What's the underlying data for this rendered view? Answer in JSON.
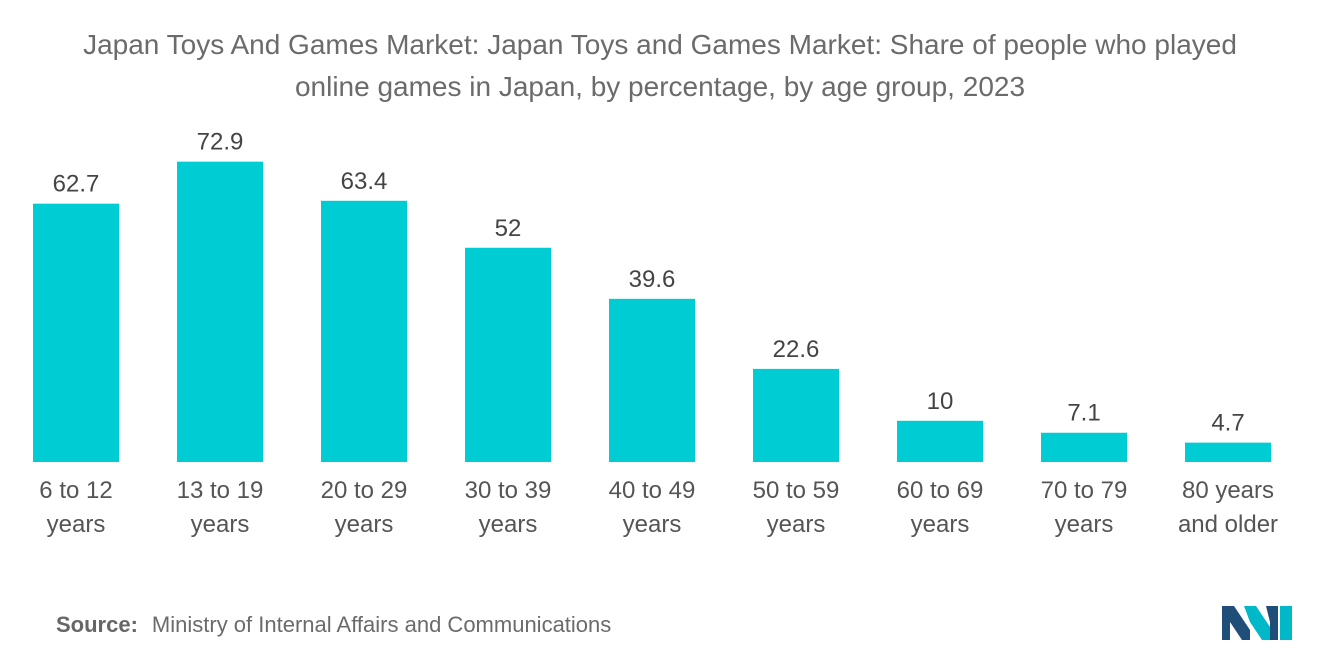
{
  "chart_data": {
    "type": "bar",
    "title_lines": [
      "Japan Toys And Games Market: Japan Toys and Games Market: Share of people who played",
      "online games in Japan, by percentage, by age group, 2023"
    ],
    "categories": [
      [
        "6 to 12",
        "years"
      ],
      [
        "13 to 19",
        "years"
      ],
      [
        "20 to 29",
        "years"
      ],
      [
        "30 to 39",
        "years"
      ],
      [
        "40 to 49",
        "years"
      ],
      [
        "50 to 59",
        "years"
      ],
      [
        "60 to 69",
        "years"
      ],
      [
        "70 to 79",
        "years"
      ],
      [
        "80 years",
        "and older"
      ]
    ],
    "values": [
      62.7,
      72.9,
      63.4,
      52,
      39.6,
      22.6,
      10,
      7.1,
      4.7
    ],
    "value_labels": [
      "62.7",
      "72.9",
      "63.4",
      "52",
      "39.6",
      "22.6",
      "10",
      "7.1",
      "4.7"
    ],
    "bar_color": "#00CDD3",
    "ylim": [
      0,
      100
    ],
    "grid": false,
    "legend": "none"
  },
  "source": {
    "label": "Source:",
    "text": "Ministry of Internal Affairs and Communications"
  },
  "logo": {
    "icon": "mordor-intelligence-logo",
    "colors": [
      "#1F4E79",
      "#00B8C8"
    ]
  }
}
